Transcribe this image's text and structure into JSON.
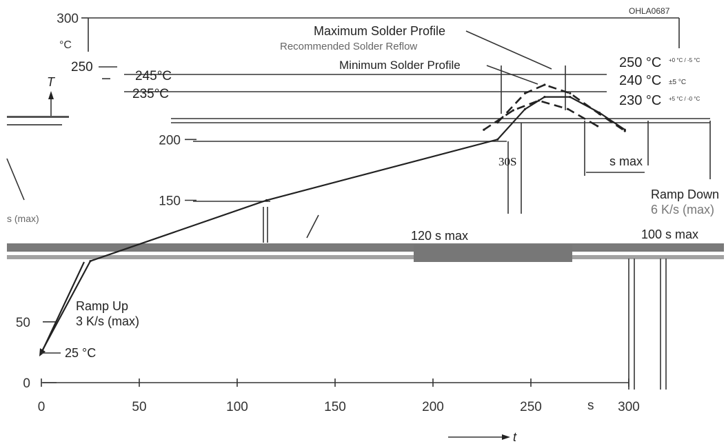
{
  "chart_data": {
    "type": "line",
    "figure_code": "OHLA0687",
    "xlabel": "t",
    "xunit": "s",
    "yunit": "°C",
    "yaxis_arrow_label": "T",
    "xlim": [
      0,
      300
    ],
    "ylim": [
      0,
      300
    ],
    "xticks": [
      0,
      50,
      100,
      150,
      200,
      250,
      300
    ],
    "yticks": [
      0,
      50,
      150,
      200,
      250,
      300
    ],
    "series": [
      {
        "name": "Maximum Solder Profile",
        "style": "dashed",
        "x": [
          233,
          247,
          257,
          270,
          285,
          298
        ],
        "y": [
          214,
          238,
          245,
          238,
          221,
          207
        ]
      },
      {
        "name": "Recommended Solder Reflow",
        "style": "solid",
        "x": [
          0,
          25,
          115,
          233,
          247,
          257,
          270,
          285,
          298
        ],
        "y": [
          25,
          100,
          150,
          200,
          225,
          235,
          235,
          222,
          208
        ]
      },
      {
        "name": "Minimum Solder Profile",
        "style": "dashed",
        "x": [
          226,
          241,
          254,
          269,
          284
        ],
        "y": [
          208,
          224,
          232,
          225,
          211
        ]
      }
    ],
    "annotations": {
      "peak_max": "250 °C",
      "peak_max_tol": "+0 °C / -5 °C",
      "peak_rec": "240 °C",
      "peak_rec_tol": "±5 °C",
      "peak_min": "230 °C",
      "peak_min_tol": "+5 °C / -0 °C",
      "level_245": "245°C",
      "level_235": "235°C",
      "level_250": "250",
      "label_30s": "30S",
      "label_smax": "s max",
      "ramp_down": "Ramp Down",
      "ramp_down_rate": "6 K/s (max)",
      "ramp_up": "Ramp Up",
      "ramp_up_rate": "3 K/s (max)",
      "start_temp": "25 °C",
      "label_120smax": "120 s max",
      "label_100smax": "100 s max",
      "label_ramp_left": "s (max)"
    }
  }
}
